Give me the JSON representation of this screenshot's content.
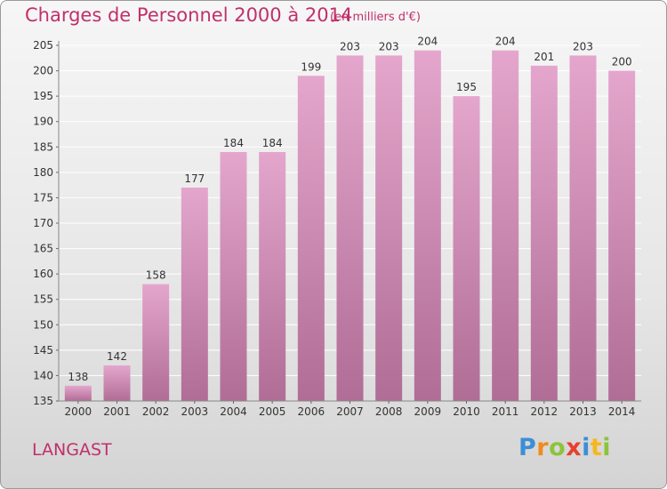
{
  "header": {
    "title": "Charges de Personnel 2000 à 2014",
    "subtitle": "(en milliers d'€)"
  },
  "footer": {
    "commune": "LANGAST",
    "logo_text": "Proxiti",
    "logo_letters": [
      {
        "ch": "P",
        "color": "#3c8fd6"
      },
      {
        "ch": "r",
        "color": "#f08a1c"
      },
      {
        "ch": "o",
        "color": "#8cc43c"
      },
      {
        "ch": "x",
        "color": "#e84030"
      },
      {
        "ch": "i",
        "color": "#3c8fd6"
      },
      {
        "ch": "t",
        "color": "#f5b71c"
      },
      {
        "ch": "i",
        "color": "#8cc43c"
      }
    ]
  },
  "chart_data": {
    "type": "bar",
    "categories": [
      "2000",
      "2001",
      "2002",
      "2003",
      "2004",
      "2005",
      "2006",
      "2007",
      "2008",
      "2009",
      "2010",
      "2011",
      "2012",
      "2013",
      "2014"
    ],
    "values": [
      138,
      142,
      158,
      177,
      184,
      184,
      199,
      203,
      203,
      204,
      195,
      204,
      201,
      203,
      200
    ],
    "ylim": [
      135,
      205
    ],
    "yticks": [
      135,
      140,
      145,
      150,
      155,
      160,
      165,
      170,
      175,
      180,
      185,
      190,
      195,
      200,
      205
    ],
    "grid": true,
    "bar_color_top": "#e4a6cc",
    "bar_color_bottom": "#b06d96",
    "text_color": "#333333"
  }
}
